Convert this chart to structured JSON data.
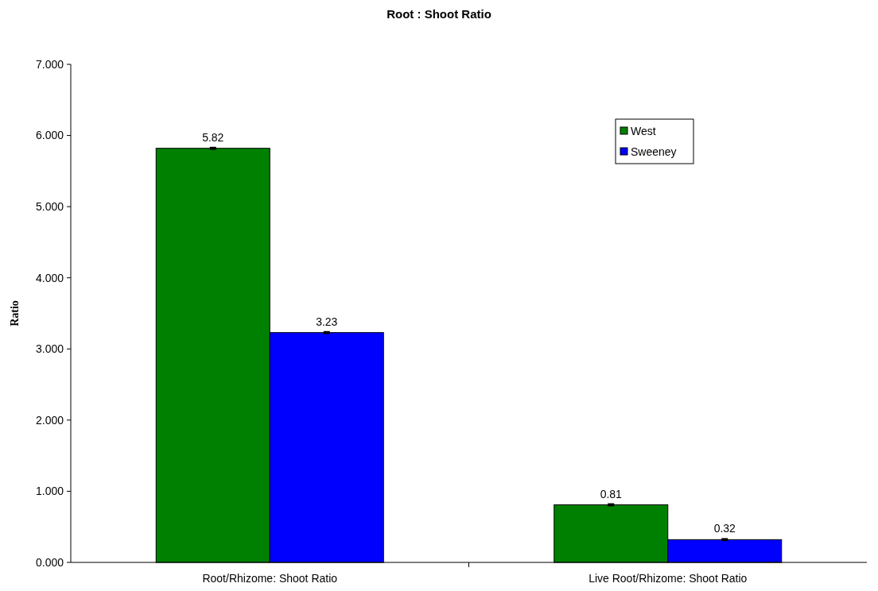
{
  "chart_data": {
    "type": "bar",
    "title": "Root : Shoot Ratio",
    "ylabel": "Ratio",
    "categories": [
      "Root/Rhizome: Shoot Ratio",
      "Live Root/Rhizome: Shoot Ratio"
    ],
    "series": [
      {
        "name": "West",
        "color": "#008000",
        "values": [
          5.82,
          0.81
        ],
        "errors": [
          0.01,
          0.01
        ]
      },
      {
        "name": "Sweeney",
        "color": "#0000ff",
        "values": [
          3.23,
          0.32
        ],
        "errors": [
          0.01,
          0.01
        ]
      }
    ],
    "ylim": [
      0,
      7
    ],
    "yticks": [
      {
        "value": 0,
        "label": "0.000"
      },
      {
        "value": 1,
        "label": "1.000"
      },
      {
        "value": 2,
        "label": "2.000"
      },
      {
        "value": 3,
        "label": "3.000"
      },
      {
        "value": 4,
        "label": "4.000"
      },
      {
        "value": 5,
        "label": "5.000"
      },
      {
        "value": 6,
        "label": "6.000"
      },
      {
        "value": 7,
        "label": "7.000"
      }
    ],
    "data_labels": true,
    "legend": "top right"
  }
}
